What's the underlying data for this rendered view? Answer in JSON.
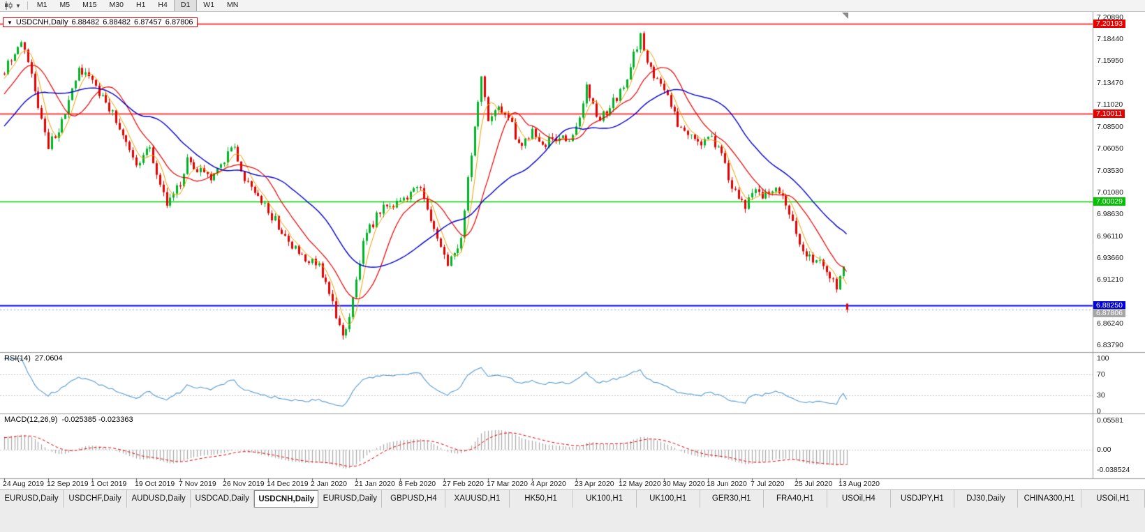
{
  "toolbar": {
    "periods": [
      "M1",
      "M5",
      "M15",
      "M30",
      "H1",
      "H4",
      "D1",
      "W1",
      "MN"
    ],
    "active_period": "D1"
  },
  "symbol_header": {
    "symbol": "USDCNH,Daily",
    "open": "6.88482",
    "high": "6.88482",
    "low": "6.87457",
    "close": "6.87806"
  },
  "tabs": {
    "items": [
      "EURUSD,Daily",
      "USDCHF,Daily",
      "AUDUSD,Daily",
      "USDCAD,Daily",
      "USDCNH,Daily",
      "EURUSD,Daily",
      "GBPUSD,H4",
      "XAUUSD,H1",
      "HK50,H1",
      "UK100,H1",
      "UK100,H1",
      "GER30,H1",
      "FRA40,H1",
      "USOil,H4",
      "USDJPY,H1",
      "DJ30,Daily",
      "CHINA300,H1",
      "USOil,H1"
    ],
    "active_index": 4
  },
  "chart_data": {
    "type": "candlestick",
    "symbol": "USDCNH",
    "timeframe": "Daily",
    "title": "USDCNH,Daily",
    "last_candle": {
      "open": 6.88482,
      "high": 6.88482,
      "low": 6.87457,
      "close": 6.87806
    },
    "current_price": 6.87806,
    "y_range": [
      6.83,
      7.215
    ],
    "price_axis_labels": [
      "7.20890",
      "7.18440",
      "7.15950",
      "7.13470",
      "7.11020",
      "7.08500",
      "7.06050",
      "7.03530",
      "7.01080",
      "6.98630",
      "6.96110",
      "6.93660",
      "6.91210",
      "6.86240",
      "6.83790"
    ],
    "price_badges": [
      {
        "value": "7.20193",
        "color": "#e60000",
        "text": "#ffffff"
      },
      {
        "value": "7.10011",
        "color": "#e60000",
        "text": "#ffffff"
      },
      {
        "value": "7.00029",
        "color": "#00c000",
        "text": "#ffffff"
      },
      {
        "value": "6.88250",
        "color": "#0000dc",
        "text": "#ffffff"
      },
      {
        "value": "6.87806",
        "color": "#a6a6a6",
        "text": "#ffffff"
      }
    ],
    "horizontal_lines": [
      {
        "price": 7.20193,
        "color": "#ff0000",
        "width": 1.5
      },
      {
        "price": 7.10011,
        "color": "#ff0000",
        "width": 1.5
      },
      {
        "price": 7.00029,
        "color": "#00cc00",
        "width": 1.5
      },
      {
        "price": 6.8825,
        "color": "#0000ff",
        "width": 2
      }
    ],
    "date_axis_labels": [
      "24 Aug 2019",
      "12 Sep 2019",
      "1 Oct 2019",
      "19 Oct 2019",
      "7 Nov 2019",
      "26 Nov 2019",
      "14 Dec 2019",
      "2 Jan 2020",
      "21 Jan 2020",
      "8 Feb 2020",
      "27 Feb 2020",
      "17 Mar 2020",
      "4 Apr 2020",
      "23 Apr 2020",
      "12 May 2020",
      "30 May 2020",
      "18 Jun 2020",
      "7 Jul 2020",
      "25 Jul 2020",
      "13 Aug 2020"
    ],
    "num_candles": 250,
    "candle_step": 4.846,
    "warmup": 30,
    "warmup_start": 7.02,
    "noise": 0.0055,
    "wick": 0.005,
    "up_color": "#00b428",
    "down_color": "#e60000",
    "price_path": [
      [
        0,
        7.148
      ],
      [
        5,
        7.186
      ],
      [
        13,
        7.065
      ],
      [
        17,
        7.09
      ],
      [
        22,
        7.148
      ],
      [
        26,
        7.135
      ],
      [
        32,
        7.1
      ],
      [
        39,
        7.045
      ],
      [
        43,
        7.06
      ],
      [
        48,
        6.995
      ],
      [
        52,
        7.02
      ],
      [
        54,
        7.045
      ],
      [
        61,
        7.025
      ],
      [
        68,
        7.065
      ],
      [
        70,
        7.03
      ],
      [
        78,
        6.99
      ],
      [
        85,
        6.95
      ],
      [
        93,
        6.925
      ],
      [
        96,
        6.895
      ],
      [
        100,
        6.848
      ],
      [
        102,
        6.87
      ],
      [
        106,
        6.955
      ],
      [
        111,
        6.99
      ],
      [
        117,
        7.0
      ],
      [
        123,
        7.02
      ],
      [
        127,
        6.97
      ],
      [
        131,
        6.925
      ],
      [
        135,
        6.96
      ],
      [
        139,
        7.09
      ],
      [
        141,
        7.14
      ],
      [
        143,
        7.09
      ],
      [
        146,
        7.11
      ],
      [
        149,
        7.095
      ],
      [
        152,
        7.065
      ],
      [
        156,
        7.08
      ],
      [
        159,
        7.06
      ],
      [
        162,
        7.075
      ],
      [
        166,
        7.07
      ],
      [
        169,
        7.08
      ],
      [
        172,
        7.13
      ],
      [
        175,
        7.095
      ],
      [
        178,
        7.1
      ],
      [
        182,
        7.125
      ],
      [
        184,
        7.14
      ],
      [
        188,
        7.19
      ],
      [
        190,
        7.155
      ],
      [
        195,
        7.125
      ],
      [
        200,
        7.08
      ],
      [
        205,
        7.065
      ],
      [
        208,
        7.075
      ],
      [
        211,
        7.06
      ],
      [
        215,
        7.02
      ],
      [
        219,
        6.995
      ],
      [
        222,
        7.01
      ],
      [
        226,
        7.005
      ],
      [
        229,
        7.015
      ],
      [
        232,
        6.985
      ],
      [
        235,
        6.955
      ],
      [
        238,
        6.935
      ],
      [
        241,
        6.93
      ],
      [
        244,
        6.915
      ],
      [
        246,
        6.905
      ],
      [
        248,
        6.925
      ],
      [
        249,
        6.878
      ]
    ],
    "moving_averages": [
      {
        "period": 5,
        "color": "#f0a000"
      },
      {
        "period": 13,
        "color": "#e80000"
      },
      {
        "period": 30,
        "color": "#0000cc"
      }
    ],
    "indicators": {
      "rsi": {
        "label": "RSI(14)",
        "period": 14,
        "value": "27.0604",
        "axis_labels": [
          "100",
          "70",
          "30",
          "0"
        ],
        "levels": [
          70,
          30
        ],
        "color": "#569bd2"
      },
      "macd": {
        "label": "MACD(12,26,9)",
        "fast": 12,
        "slow": 26,
        "signal": 9,
        "values": "-0.025385 -0.023363",
        "axis_labels": [
          "0.05581",
          "0.00",
          "-0.038524"
        ],
        "hist_color": "#a8a8a8",
        "signal_color": "#e00000"
      }
    }
  }
}
